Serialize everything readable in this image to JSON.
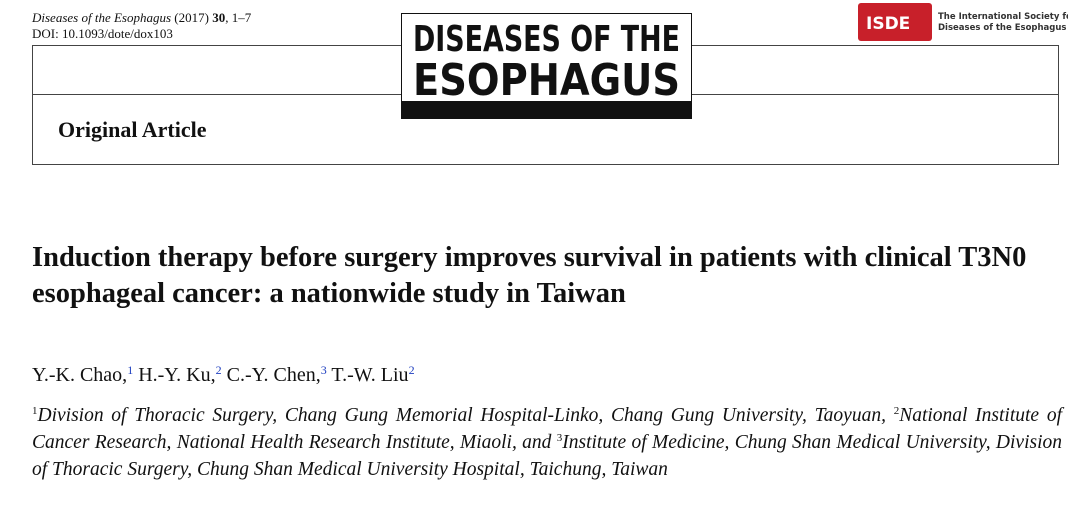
{
  "header": {
    "journal": "Diseases of the Esophagus",
    "year": "(2017)",
    "volume": "30",
    "pages": ", 1–7",
    "doi": "DOI: 10.1093/dote/dox103",
    "logo_line1": "DISEASES OF THE",
    "logo_line2": "ESOPHAGUS",
    "society_abbr": "ISDE",
    "society_line1": "The International Society for",
    "society_line2": "Diseases of the Esophagus",
    "section": "Original Article"
  },
  "article": {
    "title": "Induction therapy before surgery improves survival in patients with clinical T3N0 esophageal cancer: a nationwide study in Taiwan",
    "authors": [
      {
        "name": "Y.-K. Chao,",
        "sup": "1"
      },
      {
        "name": "H.-Y. Ku,",
        "sup": "2"
      },
      {
        "name": "C.-Y. Chen,",
        "sup": "3"
      },
      {
        "name": "T.-W. Liu",
        "sup": "2"
      }
    ],
    "affiliations": [
      {
        "sup": "1",
        "text": "Division of Thoracic Surgery, Chang Gung Memorial Hospital-Linko, Chang Gung University, Taoyuan,"
      },
      {
        "sup": "2",
        "text": "National Institute of Cancer Research, National Health Research Institute, Miaoli, and"
      },
      {
        "sup": "3",
        "text": "Institute of Medicine, Chung Shan Medical University, Division of Thoracic Surgery, Chung Shan Medical University Hospital, Taichung, Taiwan"
      }
    ]
  }
}
